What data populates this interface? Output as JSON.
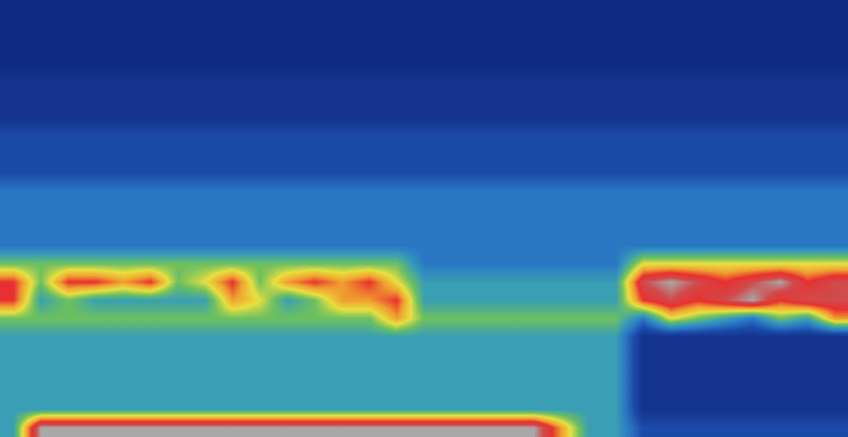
{
  "chart_data": {
    "type": "heatmap",
    "tick_labels": false,
    "cells": [
      [
        0,
        0,
        0,
        0,
        0,
        0,
        0,
        0,
        0,
        0,
        0,
        0,
        0,
        0,
        0,
        0,
        0,
        0,
        0,
        0,
        0,
        0,
        0,
        0,
        0,
        0,
        0,
        0,
        0,
        0,
        0
      ],
      [
        0,
        0,
        0,
        0,
        0,
        0,
        0,
        0,
        0,
        0,
        0,
        0,
        0,
        0,
        0,
        0,
        0,
        0,
        0,
        0,
        0,
        0,
        0,
        0,
        0,
        0,
        0,
        0,
        0,
        0,
        0
      ],
      [
        0,
        0,
        0,
        0,
        0,
        0,
        0,
        0,
        0,
        0,
        0,
        0,
        0,
        0,
        0,
        0,
        0,
        0,
        0,
        0,
        0,
        0,
        0,
        0,
        0,
        0,
        0,
        0,
        0,
        0,
        0
      ],
      [
        0,
        0,
        0,
        0,
        0,
        0,
        0,
        0,
        0,
        0,
        0,
        0,
        0,
        0,
        0,
        0,
        0,
        0,
        0,
        0,
        0,
        0,
        0,
        0,
        0,
        0,
        0,
        0,
        0,
        0,
        0
      ],
      [
        1,
        1,
        1,
        1,
        1,
        1,
        1,
        1,
        1,
        1,
        1,
        1,
        1,
        1,
        1,
        1,
        1,
        1,
        1,
        1,
        1,
        1,
        1,
        1,
        1,
        1,
        1,
        1,
        1,
        1,
        1
      ],
      [
        1,
        1,
        1,
        1,
        1,
        1,
        1,
        1,
        1,
        1,
        1,
        1,
        1,
        1,
        1,
        1,
        1,
        1,
        1,
        1,
        1,
        1,
        1,
        1,
        1,
        1,
        1,
        1,
        1,
        1,
        1
      ],
      [
        1,
        1,
        1,
        1,
        1,
        1,
        1,
        1,
        1,
        1,
        1,
        1,
        1,
        1,
        1,
        1,
        1,
        1,
        1,
        1,
        1,
        1,
        1,
        1,
        1,
        1,
        1,
        1,
        1,
        1,
        1
      ],
      [
        2,
        2,
        2,
        2,
        2,
        2,
        2,
        2,
        2,
        2,
        2,
        2,
        2,
        2,
        2,
        2,
        2,
        2,
        2,
        2,
        2,
        2,
        2,
        2,
        2,
        2,
        2,
        2,
        2,
        2,
        2
      ],
      [
        2,
        2,
        2,
        2,
        2,
        2,
        2,
        2,
        2,
        2,
        2,
        2,
        2,
        2,
        2,
        2,
        2,
        2,
        2,
        2,
        2,
        2,
        2,
        2,
        2,
        2,
        2,
        2,
        2,
        2,
        2
      ],
      [
        2,
        2,
        2,
        2,
        2,
        2,
        2,
        2,
        2,
        2,
        2,
        2,
        2,
        2,
        2,
        2,
        2,
        2,
        2,
        2,
        2,
        2,
        2,
        2,
        2,
        2,
        2,
        2,
        2,
        2,
        2
      ],
      [
        3,
        3,
        3,
        3,
        3,
        3,
        3,
        3,
        3,
        3,
        3,
        3,
        3,
        3,
        3,
        3,
        3,
        3,
        3,
        3,
        3,
        3,
        3,
        3,
        3,
        3,
        3,
        3,
        3,
        3,
        3
      ],
      [
        3,
        3,
        3,
        3,
        3,
        3,
        3,
        3,
        3,
        3,
        3,
        3,
        3,
        3,
        3,
        3,
        3,
        3,
        3,
        3,
        3,
        3,
        3,
        3,
        3,
        3,
        3,
        3,
        3,
        3,
        3
      ],
      [
        3,
        3,
        3,
        3,
        3,
        3,
        3,
        3,
        3,
        3,
        3,
        3,
        3,
        3,
        3,
        3,
        3,
        3,
        3,
        3,
        3,
        3,
        3,
        3,
        3,
        3,
        3,
        3,
        3,
        3,
        3
      ],
      [
        3,
        3,
        3,
        3,
        3,
        3,
        3,
        3,
        3,
        3,
        3,
        3,
        3,
        3,
        3,
        3,
        3,
        3,
        3,
        3,
        3,
        3,
        3,
        3,
        3,
        3,
        3,
        3,
        3,
        3,
        3
      ],
      [
        5,
        5,
        5,
        5,
        5,
        5,
        5,
        5,
        5,
        5,
        5,
        5,
        5,
        5,
        5,
        3,
        3,
        3,
        3,
        3,
        3,
        3,
        3,
        6,
        6,
        6,
        6,
        6,
        6,
        6,
        6
      ],
      [
        8,
        5,
        8,
        8,
        7,
        8,
        5,
        6,
        8,
        5,
        7,
        8,
        7,
        8,
        6,
        4,
        4,
        4,
        4,
        4,
        4,
        4,
        4,
        9,
        10,
        9,
        8,
        9,
        10,
        8,
        9
      ],
      [
        8,
        4,
        5,
        4,
        4,
        4,
        4,
        4,
        7,
        6,
        4,
        5,
        7,
        7,
        8,
        4,
        4,
        4,
        4,
        4,
        4,
        4,
        4,
        8,
        9,
        8,
        9,
        10,
        8,
        9,
        9
      ],
      [
        5,
        5,
        5,
        5,
        5,
        5,
        5,
        5,
        5,
        5,
        5,
        5,
        5,
        5,
        7,
        5,
        5,
        5,
        5,
        5,
        5,
        5,
        5,
        3,
        6,
        5,
        4,
        3,
        5,
        4,
        7
      ],
      [
        4,
        4,
        4,
        4,
        4,
        4,
        4,
        4,
        4,
        4,
        4,
        4,
        4,
        4,
        4,
        4,
        4,
        4,
        4,
        4,
        4,
        4,
        4,
        1,
        1,
        1,
        1,
        1,
        1,
        1,
        1
      ],
      [
        4,
        4,
        4,
        4,
        4,
        4,
        4,
        4,
        4,
        4,
        4,
        4,
        4,
        4,
        4,
        4,
        4,
        4,
        4,
        4,
        4,
        4,
        4,
        1,
        1,
        1,
        1,
        1,
        1,
        1,
        1
      ],
      [
        4,
        4,
        4,
        4,
        4,
        4,
        4,
        4,
        4,
        4,
        4,
        4,
        4,
        4,
        4,
        4,
        4,
        4,
        4,
        4,
        4,
        4,
        4,
        1,
        1,
        1,
        1,
        1,
        1,
        1,
        1
      ],
      [
        4,
        4,
        4,
        4,
        4,
        4,
        4,
        4,
        4,
        4,
        4,
        4,
        4,
        4,
        4,
        4,
        4,
        4,
        4,
        4,
        4,
        4,
        4,
        1,
        1,
        1,
        1,
        1,
        1,
        1,
        1
      ],
      [
        4,
        4,
        4,
        4,
        4,
        4,
        4,
        4,
        4,
        4,
        4,
        4,
        4,
        4,
        4,
        4,
        4,
        4,
        4,
        4,
        4,
        4,
        4,
        1,
        1,
        1,
        1,
        1,
        1,
        1,
        1
      ],
      [
        4,
        10,
        10,
        10,
        10,
        10,
        10,
        10,
        10,
        10,
        10,
        10,
        10,
        10,
        10,
        10,
        10,
        10,
        10,
        10,
        7,
        4,
        4,
        2,
        2,
        2,
        2,
        2,
        2,
        2,
        2
      ]
    ]
  }
}
